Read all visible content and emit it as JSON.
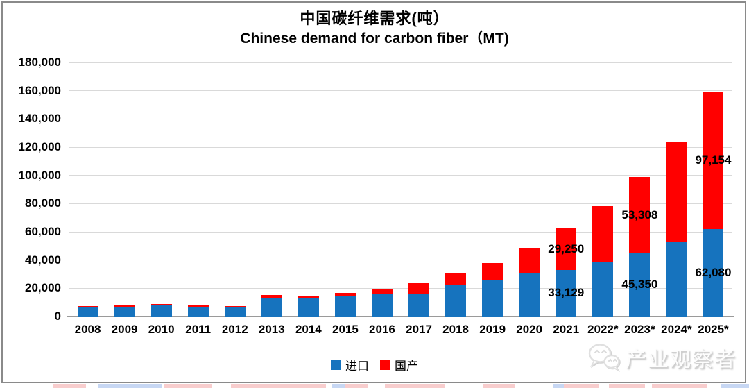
{
  "title": {
    "line1": "中国碳纤维需求(吨）",
    "line2": "Chinese demand for carbon fiber（MT)"
  },
  "chart_data": {
    "type": "bar",
    "stacked": true,
    "title": "中国碳纤维需求(吨）",
    "subtitle": "Chinese demand for carbon fiber（MT)",
    "categories": [
      "2008",
      "2009",
      "2010",
      "2011",
      "2012",
      "2013",
      "2014",
      "2015",
      "2016",
      "2017",
      "2018",
      "2019",
      "2020",
      "2021",
      "2022*",
      "2023*",
      "2024*",
      "2025*"
    ],
    "series": [
      {
        "name": "进口",
        "color": "#1673be",
        "values": [
          6500,
          7000,
          7700,
          7000,
          6500,
          13100,
          12800,
          14300,
          15963,
          16087,
          22000,
          25840,
          30351,
          33129,
          38500,
          45350,
          52500,
          62080
        ]
      },
      {
        "name": "国产",
        "color": "#ff0000",
        "values": [
          1000,
          900,
          1300,
          900,
          900,
          2000,
          1500,
          2500,
          3600,
          7400,
          9000,
          12000,
          18500,
          29250,
          39500,
          53308,
          71500,
          97154
        ]
      }
    ],
    "data_labels": [
      {
        "category": "2021",
        "series": "进口",
        "text": "33,129"
      },
      {
        "category": "2021",
        "series": "国产",
        "text": "29,250"
      },
      {
        "category": "2023*",
        "series": "进口",
        "text": "45,350"
      },
      {
        "category": "2023*",
        "series": "国产",
        "text": "53,308"
      },
      {
        "category": "2025*",
        "series": "进口",
        "text": "62,080"
      },
      {
        "category": "2025*",
        "series": "国产",
        "text": "97,154"
      }
    ],
    "ylim": [
      0,
      180000
    ],
    "ytick_step": 20000,
    "ytick_labels": [
      "0",
      "20,000",
      "40,000",
      "60,000",
      "80,000",
      "100,000",
      "120,000",
      "140,000",
      "160,000",
      "180,000"
    ],
    "grid": true,
    "legend_position": "bottom"
  },
  "legend": {
    "items": [
      {
        "label": "进口",
        "color": "#1673be"
      },
      {
        "label": "国产",
        "color": "#ff0000"
      }
    ]
  },
  "watermark": {
    "icon": "wechat-icon",
    "text": "产业观察者"
  },
  "artifacts": {
    "bottom_strip": [
      {
        "x": 77,
        "w": 47,
        "color": "pink"
      },
      {
        "x": 142,
        "w": 91,
        "color": "blue"
      },
      {
        "x": 237,
        "w": 68,
        "color": "pink"
      },
      {
        "x": 333,
        "w": 137,
        "color": "pink"
      },
      {
        "x": 478,
        "w": 19,
        "color": "blue"
      },
      {
        "x": 498,
        "w": 32,
        "color": "pink"
      },
      {
        "x": 555,
        "w": 87,
        "color": "pink"
      },
      {
        "x": 697,
        "w": 46,
        "color": "pink"
      },
      {
        "x": 797,
        "w": 16,
        "color": "blue"
      },
      {
        "x": 813,
        "w": 50,
        "color": "pink"
      },
      {
        "x": 878,
        "w": 52,
        "color": "pink"
      },
      {
        "x": 940,
        "w": 80,
        "color": "pink"
      },
      {
        "x": 1040,
        "w": 40,
        "color": "blue"
      }
    ]
  }
}
